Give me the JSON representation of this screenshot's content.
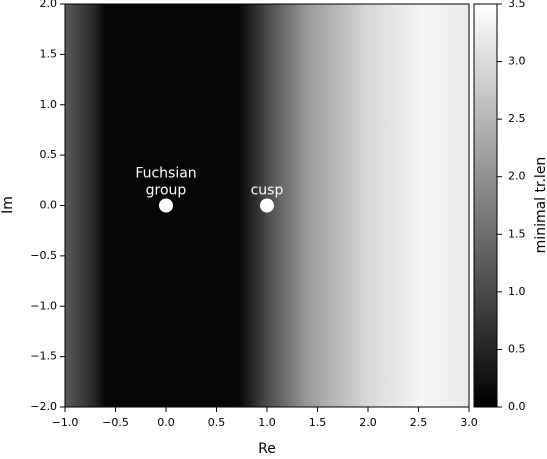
{
  "chart_data": {
    "type": "scatter",
    "xlabel": "Re",
    "ylabel": "Im",
    "xlim": [
      -1,
      3
    ],
    "ylim": [
      -2,
      2
    ],
    "xticks": [
      {
        "value": -1,
        "label": "−1.0"
      },
      {
        "value": -0.5,
        "label": "−0.5"
      },
      {
        "value": 0,
        "label": "0.0"
      },
      {
        "value": 0.5,
        "label": "0.5"
      },
      {
        "value": 1,
        "label": "1.0"
      },
      {
        "value": 1.5,
        "label": "1.5"
      },
      {
        "value": 2,
        "label": "2.0"
      },
      {
        "value": 2.5,
        "label": "2.5"
      },
      {
        "value": 3,
        "label": "3.0"
      }
    ],
    "yticks": [
      {
        "value": -2,
        "label": "−2.0"
      },
      {
        "value": -1.5,
        "label": "−1.5"
      },
      {
        "value": -1,
        "label": "−1.0"
      },
      {
        "value": -0.5,
        "label": "−0.5"
      },
      {
        "value": 0,
        "label": "0.0"
      },
      {
        "value": 0.5,
        "label": "0.5"
      },
      {
        "value": 1,
        "label": "1.0"
      },
      {
        "value": 1.5,
        "label": "1.5"
      },
      {
        "value": 2,
        "label": "2.0"
      }
    ],
    "x": [
      0,
      1
    ],
    "y": [
      0,
      0
    ],
    "color": "#ffffff",
    "annotations": [
      {
        "lines": [
          "Fuchsian",
          "group"
        ]
      },
      {
        "lines": [
          "cusp"
        ]
      }
    ],
    "colorbar": {
      "label": "minimal tr.len",
      "lim": [
        0,
        3.5
      ],
      "colormap": "gray",
      "ticks": [
        {
          "value": 0,
          "label": "0.0"
        },
        {
          "value": 0.5,
          "label": "0.5"
        },
        {
          "value": 1,
          "label": "1.0"
        },
        {
          "value": 1.5,
          "label": "1.5"
        },
        {
          "value": 2,
          "label": "2.0"
        },
        {
          "value": 2.5,
          "label": "2.5"
        },
        {
          "value": 3,
          "label": "3.0"
        },
        {
          "value": 3.5,
          "label": "3.5"
        }
      ]
    }
  }
}
